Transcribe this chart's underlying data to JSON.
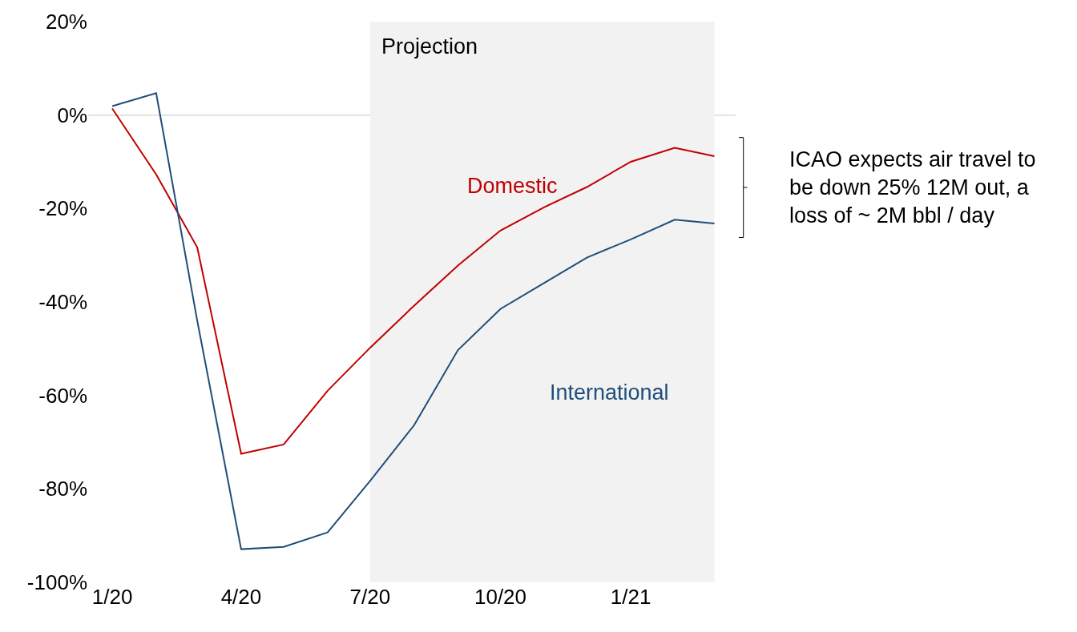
{
  "chart_data": {
    "type": "line",
    "x": [
      "2020-01",
      "2020-02",
      "2020-03",
      "2020-04",
      "2020-05",
      "2020-06",
      "2020-07",
      "2020-08",
      "2020-09",
      "2020-10",
      "2020-11",
      "2020-12",
      "2021-01",
      "2021-02",
      "2021-03"
    ],
    "series": [
      {
        "name": "Domestic",
        "color": "#c00000",
        "values": [
          1.4,
          -12.7,
          -28.3,
          -72.5,
          -70.5,
          -59,
          -49.8,
          -40.8,
          -32.2,
          -24.7,
          -19.7,
          -15.4,
          -10,
          -7,
          -8.8
        ]
      },
      {
        "name": "International",
        "color": "#1f4e79",
        "values": [
          1.9,
          4.7,
          -44,
          -92.9,
          -92.4,
          -89.3,
          -78.3,
          -66.4,
          -50.3,
          -41.5,
          -35.9,
          -30.5,
          -26.6,
          -22.4,
          -23.2
        ]
      }
    ],
    "xlim": [
      "2019-12-15",
      "2021-03-16"
    ],
    "xticks": [
      {
        "value": "2020-01",
        "label": "1/20"
      },
      {
        "value": "2020-04",
        "label": "4/20"
      },
      {
        "value": "2020-07",
        "label": "7/20"
      },
      {
        "value": "2020-10",
        "label": "10/20"
      },
      {
        "value": "2021-01",
        "label": "1/21"
      }
    ],
    "ylim": [
      -100,
      20
    ],
    "yticks": [
      {
        "value": 20,
        "label": "20%"
      },
      {
        "value": 0,
        "label": "0%"
      },
      {
        "value": -20,
        "label": "-20%"
      },
      {
        "value": -40,
        "label": "-40%"
      },
      {
        "value": -60,
        "label": "-60%"
      },
      {
        "value": -80,
        "label": "-80%"
      },
      {
        "value": -100,
        "label": "-100%"
      }
    ],
    "ref_lines": [
      {
        "axis": "y",
        "value": 0,
        "color": "#d9d9d9"
      }
    ],
    "bands": [
      {
        "axis": "x",
        "from": "2020-07",
        "to": "2021-03",
        "label": "Projection",
        "color": "#f2f2f2"
      }
    ],
    "annotations": [
      "ICAO expects air travel to be down 25% 12M out, a loss of ~ 2M bbl / day"
    ],
    "grid": false,
    "legend": false,
    "marker": "none",
    "line_style": "solid"
  }
}
